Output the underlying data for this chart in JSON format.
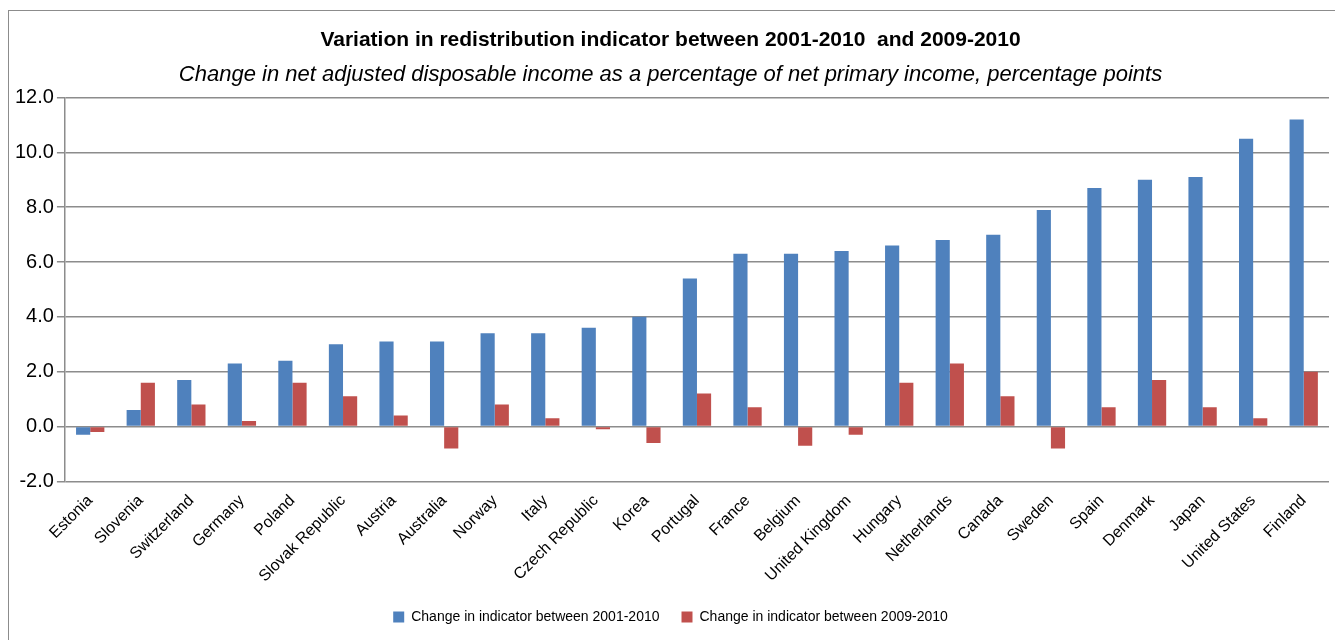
{
  "chart_data": {
    "type": "bar",
    "title": "Variation in redistribution indicator between 2001-2010  and 2009-2010",
    "subtitle": "Change in net adjusted disposable income as a percentage of net primary income, percentage points",
    "categories": [
      "Estonia",
      "Slovenia",
      "Switzerland",
      "Germany",
      "Poland",
      "Slovak Republic",
      "Austria",
      "Australia",
      "Norway",
      "Italy",
      "Czech Republic",
      "Korea",
      "Portugal",
      "France",
      "Belgium",
      "United Kingdom",
      "Hungary",
      "Netherlands",
      "Canada",
      "Sweden",
      "Spain",
      "Denmark",
      "Japan",
      "United States",
      "Finland"
    ],
    "series": [
      {
        "name": "Change in indicator between 2001-2010",
        "color": "#4f81bd",
        "values": [
          -0.3,
          0.6,
          1.7,
          2.3,
          2.4,
          3.0,
          3.1,
          3.1,
          3.4,
          3.4,
          3.6,
          4.0,
          5.4,
          6.3,
          6.3,
          6.4,
          6.6,
          6.8,
          7.0,
          7.9,
          8.7,
          9.0,
          9.1,
          10.5,
          11.2
        ]
      },
      {
        "name": "Change in indicator between 2009-2010",
        "color": "#c0504d",
        "values": [
          -0.2,
          1.6,
          0.8,
          0.2,
          1.6,
          1.1,
          0.4,
          -0.8,
          0.8,
          0.3,
          -0.1,
          -0.6,
          1.2,
          0.7,
          -0.7,
          -0.3,
          1.6,
          2.3,
          1.1,
          -0.8,
          0.7,
          1.7,
          0.7,
          0.3,
          2.0
        ]
      }
    ],
    "ylim": [
      -2,
      12
    ],
    "yticks": [
      {
        "value": -2,
        "label": "-2.0"
      },
      {
        "value": 0,
        "label": "0.0"
      },
      {
        "value": 2,
        "label": "2.0"
      },
      {
        "value": 4,
        "label": "4.0"
      },
      {
        "value": 6,
        "label": "6.0"
      },
      {
        "value": 8,
        "label": "8.0"
      },
      {
        "value": 10,
        "label": "10.0"
      },
      {
        "value": 12,
        "label": "12.0"
      }
    ],
    "grid": "y",
    "legend": "bottom"
  }
}
